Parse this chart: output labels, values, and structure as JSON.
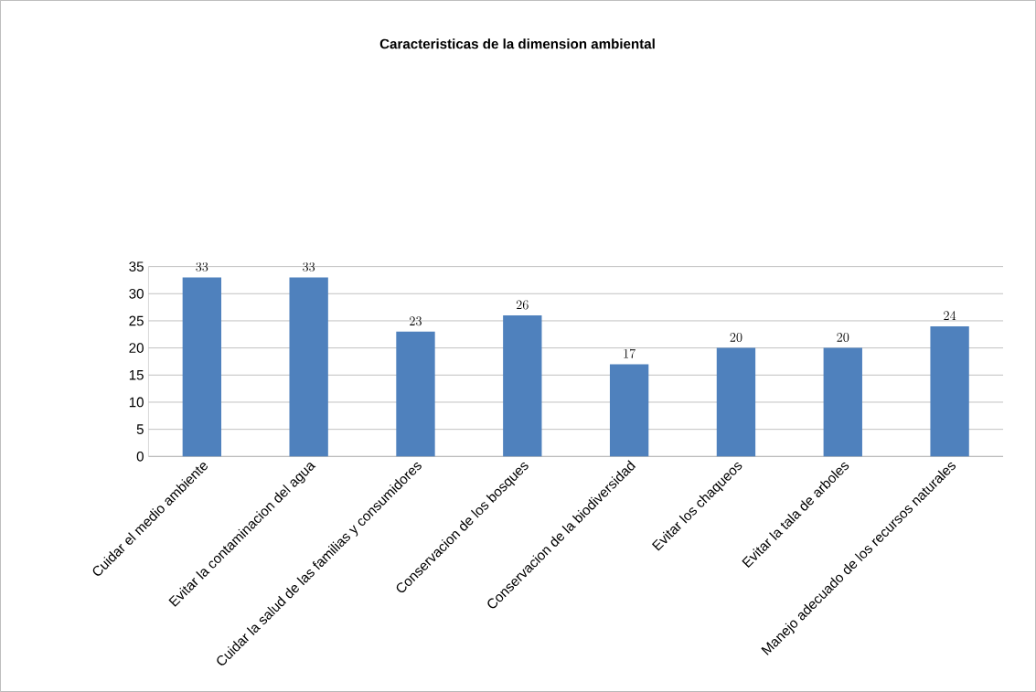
{
  "chart_data": {
    "type": "bar",
    "title": "Caracteristicas de la dimension ambiental",
    "categories": [
      "Cuidar el medio ambiente",
      "Evitar la contaminacion del agua",
      "Cuidar la salud de las familias y consumidores",
      "Conservacion de los bosques",
      "Conservacion de la biodiversidad",
      "Evitar los chaqueos",
      "Evitar la tala de arboles",
      "Manejo adecuado de los recursos naturales"
    ],
    "values": [
      33,
      33,
      23,
      26,
      17,
      20,
      20,
      24
    ],
    "color": "#4f81bd",
    "ylim": [
      0,
      35
    ],
    "yticks": [
      0,
      5,
      10,
      15,
      20,
      25,
      30,
      35
    ],
    "grid": "y",
    "data_labels": true
  }
}
